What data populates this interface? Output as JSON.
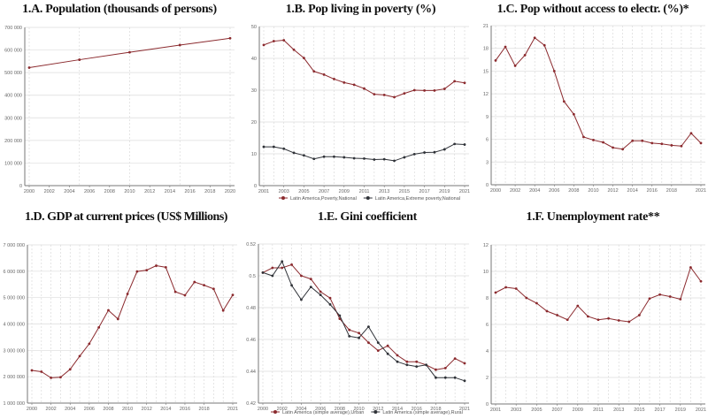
{
  "chart_data": [
    {
      "type": "line",
      "title": "1.A. Population (thousands of persons)",
      "x": [
        2000,
        2005,
        2010,
        2015,
        2020
      ],
      "xlim": [
        2000,
        2020
      ],
      "xtick_labels": [
        "2000",
        "2002",
        "2004",
        "2006",
        "2008",
        "2010",
        "2012",
        "2014",
        "2016",
        "2018",
        "2020"
      ],
      "xtick_values": [
        2000,
        2002,
        2004,
        2006,
        2008,
        2010,
        2012,
        2014,
        2016,
        2018,
        2020
      ],
      "ylim": [
        0,
        700000
      ],
      "ytick_values": [
        0,
        100000,
        200000,
        300000,
        400000,
        500000,
        600000,
        700000
      ],
      "ytick_labels": [
        "0",
        "100 000",
        "200 000",
        "300 000",
        "400 000",
        "500 000",
        "600 000",
        "700 000"
      ],
      "grid": true,
      "series": [
        {
          "values": [
            522000,
            557000,
            590000,
            622000,
            652000
          ],
          "color": "#8b2a2e"
        }
      ]
    },
    {
      "type": "line",
      "title": "1.B. Pop living in poverty (%)",
      "x": [
        2001,
        2002,
        2003,
        2004,
        2005,
        2006,
        2007,
        2008,
        2009,
        2010,
        2011,
        2012,
        2013,
        2014,
        2015,
        2016,
        2017,
        2018,
        2019,
        2020,
        2021
      ],
      "xlim": [
        2001,
        2021
      ],
      "xtick_labels": [
        "2001",
        "2003",
        "2005",
        "2007",
        "2009",
        "2011",
        "2013",
        "2015",
        "2017",
        "2019",
        "2021"
      ],
      "xtick_values": [
        2001,
        2003,
        2005,
        2007,
        2009,
        2011,
        2013,
        2015,
        2017,
        2019,
        2021
      ],
      "ylim": [
        0,
        50
      ],
      "ytick_values": [
        0,
        10,
        20,
        30,
        40,
        50
      ],
      "ytick_labels": [
        "0",
        "10",
        "20",
        "30",
        "40",
        "50"
      ],
      "grid": true,
      "legend": "bottom",
      "series": [
        {
          "name": "Latin America,Poverty,National",
          "color": "#8b2a2e",
          "values": [
            44.2,
            45.4,
            45.7,
            42.7,
            40.1,
            35.9,
            34.9,
            33.5,
            32.4,
            31.7,
            30.5,
            28.7,
            28.5,
            27.8,
            29.0,
            30.0,
            29.9,
            29.9,
            30.4,
            32.8,
            32.3
          ]
        },
        {
          "name": "Latin America,Extreme poverty,National",
          "color": "#2f3238",
          "values": [
            12.2,
            12.2,
            11.6,
            10.3,
            9.5,
            8.4,
            9.1,
            9.1,
            8.9,
            8.6,
            8.5,
            8.2,
            8.3,
            7.8,
            8.9,
            9.9,
            10.4,
            10.5,
            11.4,
            13.1,
            12.9
          ]
        }
      ]
    },
    {
      "type": "line",
      "title": "1.C. Pop without access to electr. (%)*",
      "x": [
        2000,
        2001,
        2002,
        2003,
        2004,
        2005,
        2006,
        2007,
        2008,
        2009,
        2010,
        2011,
        2012,
        2013,
        2014,
        2015,
        2016,
        2017,
        2018,
        2019,
        2020,
        2021
      ],
      "xlim": [
        2000,
        2021
      ],
      "xtick_labels": [
        "2000",
        "2002",
        "2004",
        "2006",
        "2008",
        "2010",
        "2012",
        "2014",
        "2016",
        "2018",
        "2021"
      ],
      "xtick_values": [
        2000,
        2002,
        2004,
        2006,
        2008,
        2010,
        2012,
        2014,
        2016,
        2018,
        2021
      ],
      "ylim": [
        0,
        21
      ],
      "ytick_values": [
        0,
        3,
        6,
        9,
        12,
        15,
        18,
        21
      ],
      "ytick_labels": [
        "0",
        "3",
        "6",
        "9",
        "12",
        "15",
        "18",
        "21"
      ],
      "grid": true,
      "series": [
        {
          "color": "#8b2a2e",
          "values": [
            16.4,
            18.2,
            15.7,
            17.1,
            19.4,
            18.4,
            15.0,
            11.0,
            9.3,
            6.3,
            5.9,
            5.6,
            4.9,
            4.7,
            5.8,
            5.8,
            5.5,
            5.4,
            5.2,
            5.1,
            6.8,
            5.5
          ]
        }
      ]
    },
    {
      "type": "line",
      "title": "1.D. GDP at current prices (US$ Millions)",
      "x": [
        2000,
        2001,
        2002,
        2003,
        2004,
        2005,
        2006,
        2007,
        2008,
        2009,
        2010,
        2011,
        2012,
        2013,
        2014,
        2015,
        2016,
        2017,
        2018,
        2019,
        2020,
        2021
      ],
      "xlim": [
        2000,
        2021
      ],
      "xtick_labels": [
        "2000",
        "2002",
        "2004",
        "2006",
        "2008",
        "2010",
        "2012",
        "2014",
        "2016",
        "2018",
        "2021"
      ],
      "xtick_values": [
        2000,
        2002,
        2004,
        2006,
        2008,
        2010,
        2012,
        2014,
        2016,
        2018,
        2021
      ],
      "ylim": [
        1000000,
        7000000
      ],
      "ytick_values": [
        1000000,
        2000000,
        3000000,
        4000000,
        5000000,
        6000000,
        7000000
      ],
      "ytick_labels": [
        "1 000 000",
        "2 000 000",
        "3 000 000",
        "4 000 000",
        "5 000 000",
        "6 000 000",
        "7 000 000"
      ],
      "grid": true,
      "series": [
        {
          "color": "#8b2a2e",
          "values": [
            2240000,
            2190000,
            1960000,
            1980000,
            2280000,
            2780000,
            3250000,
            3870000,
            4520000,
            4190000,
            5140000,
            5990000,
            6040000,
            6210000,
            6150000,
            5220000,
            5090000,
            5590000,
            5470000,
            5330000,
            4510000,
            5100000
          ]
        }
      ]
    },
    {
      "type": "line",
      "title": "1.E. Gini coefficient",
      "x": [
        2000,
        2001,
        2002,
        2003,
        2004,
        2005,
        2006,
        2007,
        2008,
        2009,
        2010,
        2011,
        2012,
        2013,
        2014,
        2015,
        2016,
        2017,
        2018,
        2019,
        2020,
        2021
      ],
      "xlim": [
        2000,
        2021
      ],
      "xtick_labels": [
        "2000",
        "2002",
        "2004",
        "2006",
        "2008",
        "2010",
        "2012",
        "2014",
        "2016",
        "2018",
        "2021"
      ],
      "xtick_values": [
        2000,
        2002,
        2004,
        2006,
        2008,
        2010,
        2012,
        2014,
        2016,
        2018,
        2021
      ],
      "ylim": [
        0.42,
        0.52
      ],
      "ytick_values": [
        0.42,
        0.44,
        0.46,
        0.48,
        0.5,
        0.52
      ],
      "ytick_labels": [
        "0.42",
        "0.44",
        "0.46",
        "0.48",
        "0.5",
        "0.52"
      ],
      "grid": true,
      "legend": "bottom",
      "series": [
        {
          "name": "Latin America (simple average),Urban",
          "color": "#8b2a2e",
          "values": [
            0.502,
            0.505,
            0.505,
            0.507,
            0.5,
            0.498,
            0.49,
            0.486,
            0.473,
            0.466,
            0.464,
            0.458,
            0.453,
            0.456,
            0.45,
            0.446,
            0.446,
            0.444,
            0.441,
            0.442,
            0.448,
            0.445
          ]
        },
        {
          "name": "Latin America (simple average),Rural",
          "color": "#2f3238",
          "values": [
            0.502,
            0.5,
            0.509,
            0.494,
            0.485,
            0.493,
            0.488,
            0.482,
            0.475,
            0.462,
            0.461,
            0.468,
            0.458,
            0.451,
            0.446,
            0.444,
            0.443,
            0.444,
            0.436,
            0.436,
            0.436,
            0.434
          ]
        }
      ]
    },
    {
      "type": "line",
      "title": "1.F. Unemployment rate**",
      "x": [
        2001,
        2002,
        2003,
        2004,
        2005,
        2006,
        2007,
        2008,
        2009,
        2010,
        2011,
        2012,
        2013,
        2014,
        2015,
        2016,
        2017,
        2018,
        2019,
        2020,
        2021
      ],
      "xlim": [
        2001,
        2021
      ],
      "xtick_labels": [
        "2001",
        "2003",
        "2005",
        "2007",
        "2009",
        "2011",
        "2013",
        "2015",
        "2017",
        "2019",
        "2021"
      ],
      "xtick_values": [
        2001,
        2003,
        2005,
        2007,
        2009,
        2011,
        2013,
        2015,
        2017,
        2019,
        2021
      ],
      "ylim": [
        0,
        12
      ],
      "ytick_values": [
        0,
        2,
        4,
        6,
        8,
        10,
        12
      ],
      "ytick_labels": [
        "0",
        "2",
        "4",
        "6",
        "8",
        "10",
        "12"
      ],
      "grid": true,
      "series": [
        {
          "color": "#8b2a2e",
          "values": [
            8.4,
            8.8,
            8.7,
            8.0,
            7.6,
            7.0,
            6.7,
            6.35,
            7.4,
            6.6,
            6.35,
            6.45,
            6.3,
            6.2,
            6.7,
            7.95,
            8.25,
            8.1,
            7.9,
            10.3,
            9.25
          ]
        }
      ]
    }
  ]
}
